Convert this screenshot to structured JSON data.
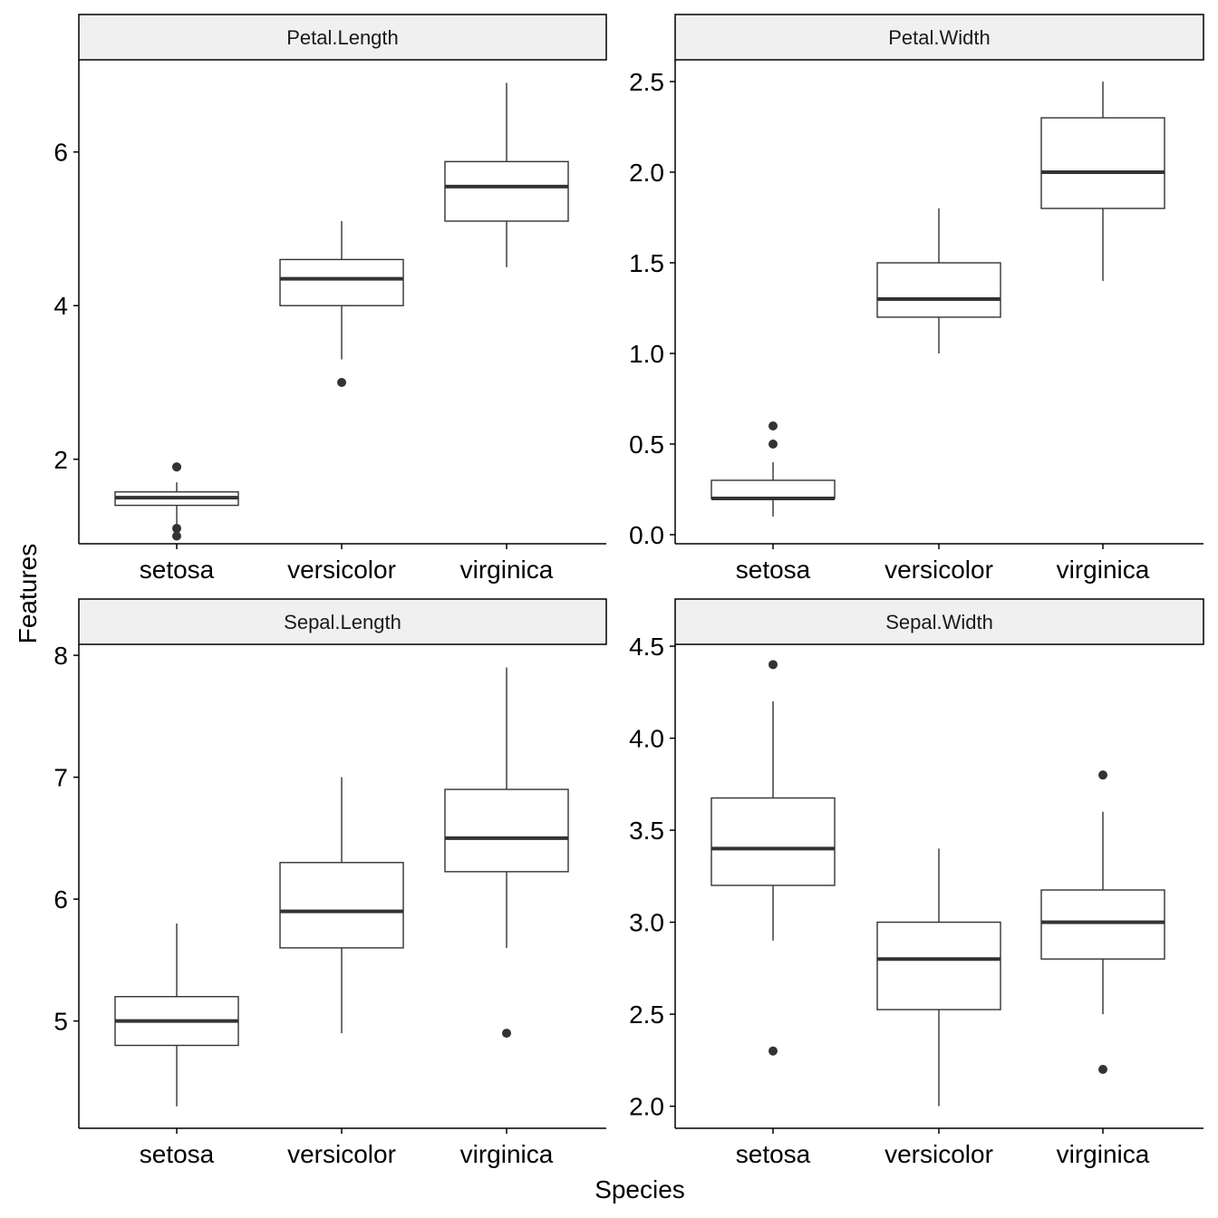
{
  "chart_data": {
    "type": "boxplot",
    "xlabel": "Species",
    "ylabel": "Features",
    "categories": [
      "setosa",
      "versicolor",
      "virginica"
    ],
    "colors": {
      "strip_fill": "#f0f0f0",
      "line": "#333333",
      "axis": "#000000"
    },
    "panels": [
      {
        "title": "Petal.Length",
        "ylim": [
          0.9,
          7.2
        ],
        "yticks": [
          2,
          4,
          6
        ],
        "tick_labels": [
          "2",
          "4",
          "6"
        ],
        "boxes": [
          {
            "category": "setosa",
            "lower": 1.0,
            "q1": 1.4,
            "median": 1.5,
            "q3": 1.575,
            "upper": 1.7,
            "outliers": [
              1.1,
              1.0,
              1.9,
              1.9
            ]
          },
          {
            "category": "versicolor",
            "lower": 3.3,
            "q1": 4.0,
            "median": 4.35,
            "q3": 4.6,
            "upper": 5.1,
            "outliers": [
              3.0
            ]
          },
          {
            "category": "virginica",
            "lower": 4.5,
            "q1": 5.1,
            "median": 5.55,
            "q3": 5.875,
            "upper": 6.9,
            "outliers": []
          }
        ]
      },
      {
        "title": "Petal.Width",
        "ylim": [
          -0.05,
          2.62
        ],
        "yticks": [
          0.0,
          0.5,
          1.0,
          1.5,
          2.0,
          2.5
        ],
        "tick_labels": [
          "0.0",
          "0.5",
          "1.0",
          "1.5",
          "2.0",
          "2.5"
        ],
        "boxes": [
          {
            "category": "setosa",
            "lower": 0.1,
            "q1": 0.2,
            "median": 0.2,
            "q3": 0.3,
            "upper": 0.4,
            "outliers": [
              0.5,
              0.6
            ]
          },
          {
            "category": "versicolor",
            "lower": 1.0,
            "q1": 1.2,
            "median": 1.3,
            "q3": 1.5,
            "upper": 1.8,
            "outliers": []
          },
          {
            "category": "virginica",
            "lower": 1.4,
            "q1": 1.8,
            "median": 2.0,
            "q3": 2.3,
            "upper": 2.5,
            "outliers": []
          }
        ]
      },
      {
        "title": "Sepal.Length",
        "ylim": [
          4.12,
          8.09
        ],
        "yticks": [
          5,
          6,
          7,
          8
        ],
        "tick_labels": [
          "5",
          "6",
          "7",
          "8"
        ],
        "boxes": [
          {
            "category": "setosa",
            "lower": 4.3,
            "q1": 4.8,
            "median": 5.0,
            "q3": 5.2,
            "upper": 5.8,
            "outliers": []
          },
          {
            "category": "versicolor",
            "lower": 4.9,
            "q1": 5.6,
            "median": 5.9,
            "q3": 6.3,
            "upper": 7.0,
            "outliers": []
          },
          {
            "category": "virginica",
            "lower": 5.6,
            "q1": 6.225,
            "median": 6.5,
            "q3": 6.9,
            "upper": 7.9,
            "outliers": [
              4.9
            ]
          }
        ]
      },
      {
        "title": "Sepal.Width",
        "ylim": [
          1.88,
          4.51
        ],
        "yticks": [
          2.0,
          2.5,
          3.0,
          3.5,
          4.0,
          4.5
        ],
        "tick_labels": [
          "2.0",
          "2.5",
          "3.0",
          "3.5",
          "4.0",
          "4.5"
        ],
        "boxes": [
          {
            "category": "setosa",
            "lower": 2.9,
            "q1": 3.2,
            "median": 3.4,
            "q3": 3.675,
            "upper": 4.2,
            "outliers": [
              4.4,
              2.3
            ]
          },
          {
            "category": "versicolor",
            "lower": 2.0,
            "q1": 2.525,
            "median": 2.8,
            "q3": 3.0,
            "upper": 3.4,
            "outliers": []
          },
          {
            "category": "virginica",
            "lower": 2.5,
            "q1": 2.8,
            "median": 3.0,
            "q3": 3.175,
            "upper": 3.6,
            "outliers": [
              3.8,
              2.2
            ]
          }
        ]
      }
    ]
  }
}
